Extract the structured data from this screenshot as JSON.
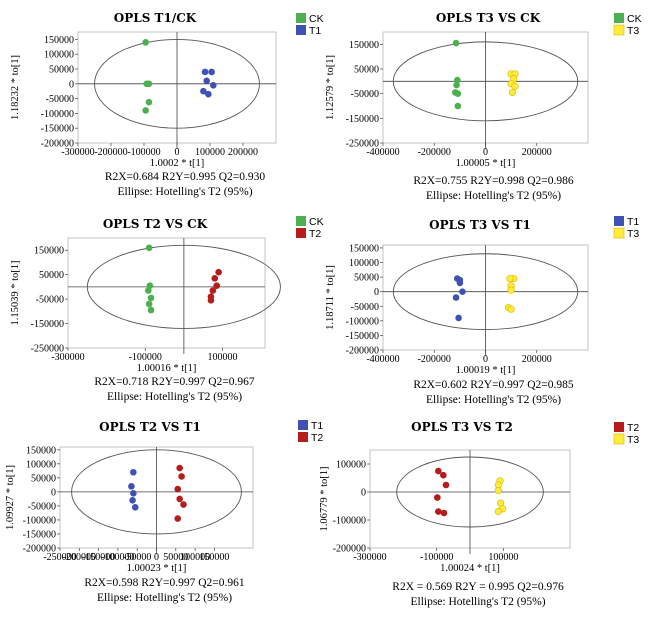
{
  "chart_data": [
    {
      "type": "scatter",
      "title": "OPLS  T1/CK",
      "xlabel": "1.0002 * t[1]",
      "ylabel": "1.18232 * to[1]",
      "xlim": [
        -300000,
        300000
      ],
      "ylim": [
        -200000,
        175000
      ],
      "xticks": [
        -300000,
        -200000,
        -100000,
        0,
        100000,
        200000
      ],
      "xtick_labels": [
        "-300000",
        "-200000",
        "-100000",
        "0",
        "100000",
        "200000"
      ],
      "yticks": [
        150000,
        100000,
        50000,
        0,
        -50000,
        -100000,
        -150000,
        -200000
      ],
      "ytick_labels": [
        "150000",
        "100000",
        "50000",
        "0",
        "-50000",
        "-100000",
        "-150000",
        "-200000"
      ],
      "ellipse": {
        "rx": 250000,
        "ry": 150000
      },
      "stats": [
        "R2X=0.684  R2Y=0.995  Q2=0.930",
        "Ellipse: Hotelling's T2 (95%)"
      ],
      "series": [
        {
          "name": "CK",
          "color": "#4caf50",
          "points": [
            [
              -95000,
              140000
            ],
            [
              -92000,
              0
            ],
            [
              -85000,
              0
            ],
            [
              -85000,
              -62000
            ],
            [
              -95000,
              -90000
            ]
          ]
        },
        {
          "name": "T1",
          "color": "#3f51b5",
          "points": [
            [
              85000,
              40000
            ],
            [
              105000,
              40000
            ],
            [
              90000,
              10000
            ],
            [
              110000,
              -5000
            ],
            [
              80000,
              -25000
            ],
            [
              95000,
              -35000
            ]
          ]
        }
      ]
    },
    {
      "type": "scatter",
      "title": "OPLS T3 VS CK",
      "xlabel": "1.00005 * t[1]",
      "ylabel": "1.12579 * to[1]",
      "xlim": [
        -400000,
        400000
      ],
      "ylim": [
        -250000,
        200000
      ],
      "xticks": [
        -400000,
        -200000,
        0,
        200000
      ],
      "xtick_labels": [
        "-400000",
        "-200000",
        "0",
        "200000"
      ],
      "yticks": [
        150000,
        50000,
        -50000,
        -150000,
        -250000
      ],
      "ytick_labels": [
        "150000",
        "50000",
        "-50000",
        "-150000",
        "-250000"
      ],
      "ellipse": {
        "rx": 360000,
        "ry": 160000
      },
      "stats": [
        "R2X=0.755  R2Y=0.998  Q2=0.986",
        "Ellipse: Hotelling's T2 (95%)"
      ],
      "series": [
        {
          "name": "CK",
          "color": "#4caf50",
          "points": [
            [
              -115000,
              155000
            ],
            [
              -110000,
              5000
            ],
            [
              -113000,
              -15000
            ],
            [
              -118000,
              -45000
            ],
            [
              -108000,
              -50000
            ],
            [
              -108000,
              -100000
            ]
          ]
        },
        {
          "name": "T3",
          "color": "#ffeb3b",
          "points": [
            [
              100000,
              30000
            ],
            [
              115000,
              30000
            ],
            [
              110000,
              10000
            ],
            [
              100000,
              -10000
            ],
            [
              115000,
              -20000
            ],
            [
              105000,
              -45000
            ]
          ]
        }
      ]
    },
    {
      "type": "scatter",
      "title": "OPLS T2 VS CK",
      "xlabel": "1.00016 * t[1]",
      "ylabel": "1.15039 * to[1]",
      "xlim": [
        -300000,
        210000
      ],
      "ylim": [
        -250000,
        200000
      ],
      "xticks": [
        -300000,
        -100000,
        100000
      ],
      "xtick_labels": [
        "-300000",
        "-100000",
        "100000"
      ],
      "yticks": [
        150000,
        50000,
        -50000,
        -150000,
        -250000
      ],
      "ytick_labels": [
        "150000",
        "50000",
        "-50000",
        "-150000",
        "-250000"
      ],
      "ellipse": {
        "rx": 250000,
        "ry": 170000
      },
      "stats": [
        "R2X=0.718  R2Y=0.997  Q2=0.967",
        "Ellipse: Hotelling's T2 (95%)"
      ],
      "series": [
        {
          "name": "CK",
          "color": "#4caf50",
          "points": [
            [
              -90000,
              160000
            ],
            [
              -88000,
              5000
            ],
            [
              -92000,
              -15000
            ],
            [
              -85000,
              -45000
            ],
            [
              -90000,
              -70000
            ],
            [
              -85000,
              -95000
            ]
          ]
        },
        {
          "name": "T2",
          "color": "#b71c1c",
          "points": [
            [
              90000,
              60000
            ],
            [
              80000,
              35000
            ],
            [
              85000,
              5000
            ],
            [
              75000,
              -15000
            ],
            [
              70000,
              -40000
            ],
            [
              70000,
              -55000
            ]
          ]
        }
      ]
    },
    {
      "type": "scatter",
      "title": "OPLS T3 VS T1",
      "xlabel": "1.00019 * t[1]",
      "ylabel": "1.18711 * to[1]",
      "xlim": [
        -400000,
        400000
      ],
      "ylim": [
        -200000,
        160000
      ],
      "xticks": [
        -400000,
        -200000,
        0,
        200000
      ],
      "xtick_labels": [
        "-400000",
        "-200000",
        "0",
        "200000"
      ],
      "yticks": [
        150000,
        100000,
        50000,
        0,
        -50000,
        -100000,
        -150000,
        -200000
      ],
      "ytick_labels": [
        "150000",
        "100000",
        "50000",
        "0",
        "-50000",
        "-100000",
        "-150000",
        "-200000"
      ],
      "ellipse": {
        "rx": 360000,
        "ry": 130000
      },
      "stats": [
        "R2X=0.602  R2Y=0.997  Q2=0.985",
        "Ellipse: Hotelling's T2 (95%)"
      ],
      "series": [
        {
          "name": "T1",
          "color": "#3f51b5",
          "points": [
            [
              -110000,
              45000
            ],
            [
              -100000,
              40000
            ],
            [
              -100000,
              30000
            ],
            [
              -90000,
              0
            ],
            [
              -115000,
              -20000
            ],
            [
              -105000,
              -90000
            ]
          ]
        },
        {
          "name": "T3",
          "color": "#ffeb3b",
          "points": [
            [
              110000,
              45000
            ],
            [
              95000,
              45000
            ],
            [
              100000,
              20000
            ],
            [
              100000,
              5000
            ],
            [
              90000,
              -55000
            ],
            [
              100000,
              -60000
            ]
          ]
        }
      ]
    },
    {
      "type": "scatter",
      "title": "OPLS T2 VS T1",
      "xlabel": "1.00023 * t[1]",
      "ylabel": "1.09927 * to[1]",
      "xlim": [
        -250000,
        250000
      ],
      "ylim": [
        -200000,
        160000
      ],
      "xticks": [
        -250000,
        -200000,
        -150000,
        -100000,
        -50000,
        0,
        50000,
        100000,
        150000
      ],
      "xtick_labels": [
        "-250000",
        "-200000",
        "-150000",
        "-100000",
        "-50000",
        "0",
        "50000",
        "100000",
        "150000"
      ],
      "yticks": [
        150000,
        100000,
        50000,
        0,
        -50000,
        -100000,
        -150000,
        -200000
      ],
      "ytick_labels": [
        "150000",
        "100000",
        "50000",
        "0",
        "-50000",
        "-100000",
        "-150000",
        "-200000"
      ],
      "ellipse": {
        "rx": 220000,
        "ry": 150000
      },
      "stats": [
        "R2X=0.598  R2Y=0.997  Q2=0.961",
        "Ellipse: Hotelling's T2 (95%)"
      ],
      "series": [
        {
          "name": "T1",
          "color": "#3f51b5",
          "points": [
            [
              -60000,
              70000
            ],
            [
              -65000,
              20000
            ],
            [
              -60000,
              -5000
            ],
            [
              -62000,
              -30000
            ],
            [
              -55000,
              -55000
            ]
          ]
        },
        {
          "name": "T2",
          "color": "#b71c1c",
          "points": [
            [
              60000,
              85000
            ],
            [
              65000,
              55000
            ],
            [
              55000,
              10000
            ],
            [
              60000,
              -25000
            ],
            [
              70000,
              -45000
            ],
            [
              55000,
              -95000
            ]
          ]
        }
      ]
    },
    {
      "type": "scatter",
      "title": "OPLS T3 VS T2",
      "xlabel": "1.00024 * t[1]",
      "ylabel": "1.06779 * to[1]",
      "xlim": [
        -300000,
        300000
      ],
      "ylim": [
        -200000,
        150000
      ],
      "xticks": [
        -300000,
        -100000,
        100000
      ],
      "xtick_labels": [
        "-300000",
        "-100000",
        "100000"
      ],
      "yticks": [
        100000,
        0,
        -100000,
        -200000
      ],
      "ytick_labels": [
        "100000",
        "0",
        "-100000",
        "-200000"
      ],
      "ellipse": {
        "rx": 220000,
        "ry": 125000
      },
      "stats": [
        "R2X = 0.569  R2Y = 0.995  Q2=0.976",
        "Ellipse: Hotelling's T2 (95%)"
      ],
      "series": [
        {
          "name": "T2",
          "color": "#b71c1c",
          "points": [
            [
              -95000,
              75000
            ],
            [
              -80000,
              60000
            ],
            [
              -72000,
              25000
            ],
            [
              -98000,
              -20000
            ],
            [
              -95000,
              -70000
            ],
            [
              -78000,
              -75000
            ]
          ]
        },
        {
          "name": "T3",
          "color": "#ffeb3b",
          "points": [
            [
              90000,
              40000
            ],
            [
              85000,
              25000
            ],
            [
              85000,
              5000
            ],
            [
              92000,
              -40000
            ],
            [
              98000,
              -60000
            ],
            [
              85000,
              -70000
            ]
          ]
        }
      ]
    }
  ]
}
